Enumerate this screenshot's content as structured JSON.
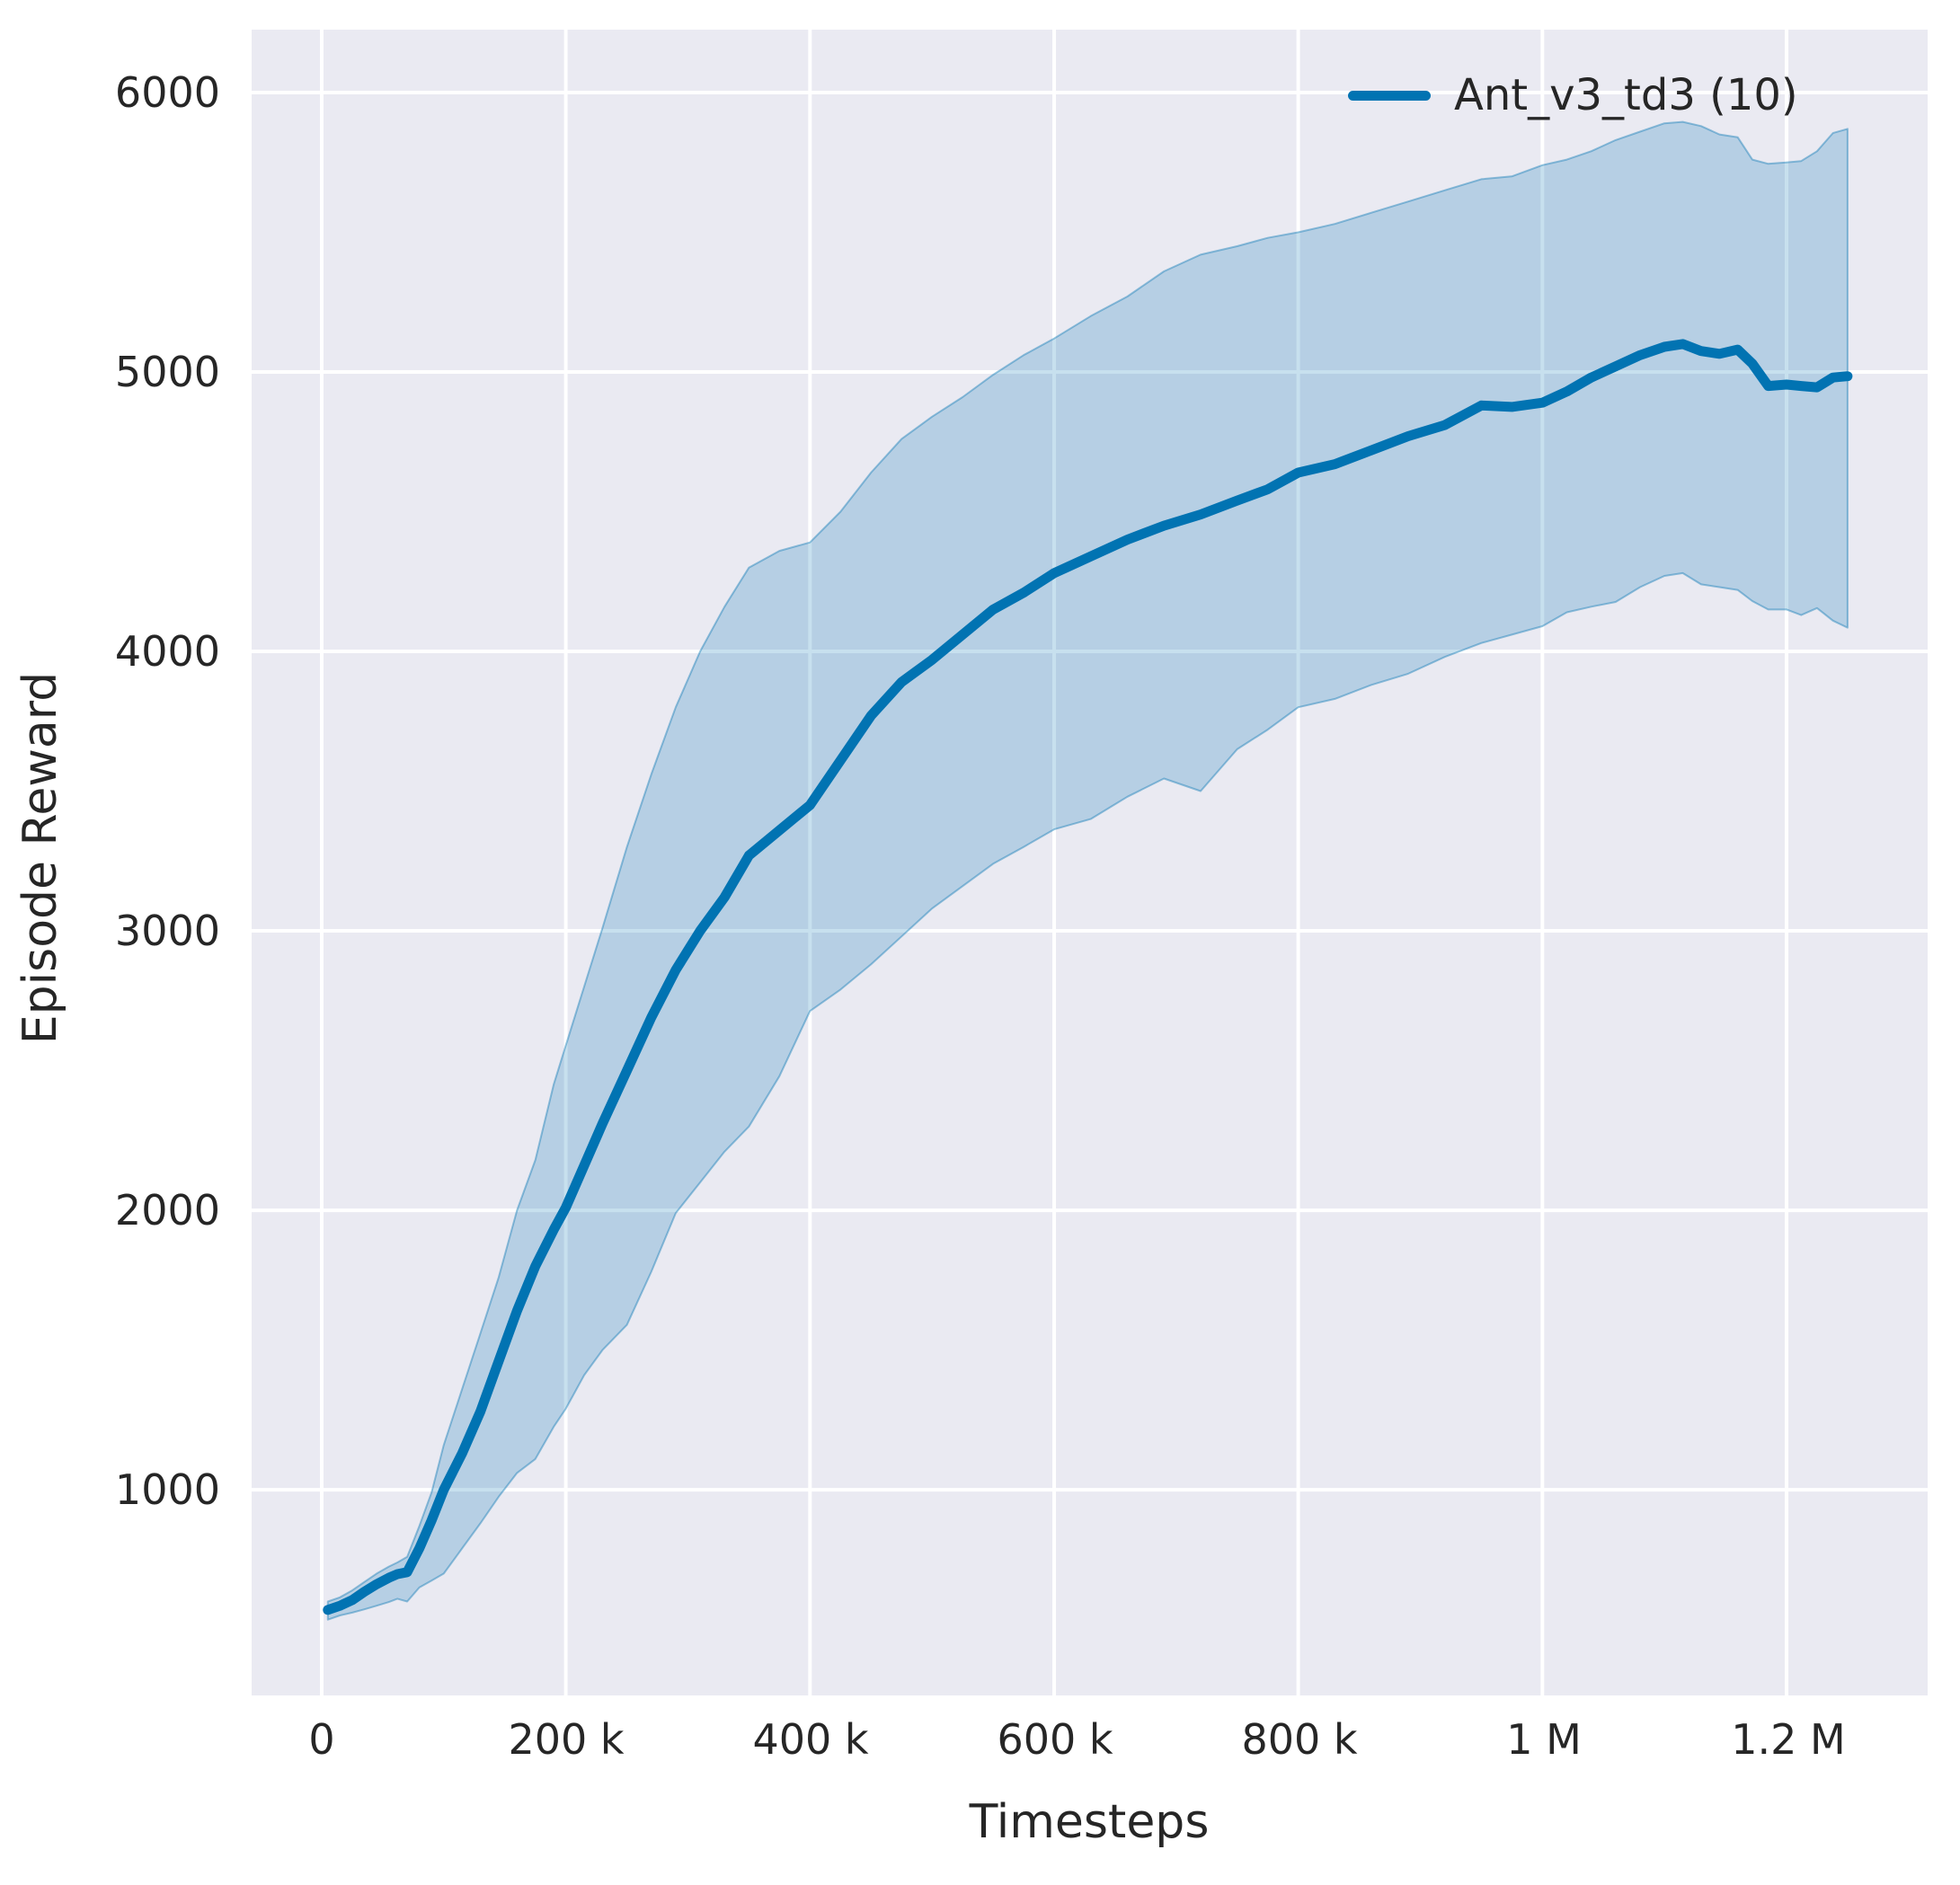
{
  "figure": {
    "background": "#ffffff"
  },
  "legend": {
    "label": "Ant_v3_td3 (10)"
  },
  "chart_data": {
    "type": "line",
    "title": "",
    "xlabel": "Timesteps",
    "ylabel": "Episode Reward",
    "legend_entries": [
      "Ant_v3_td3 (10)"
    ],
    "legend_position": "upper right",
    "grid": true,
    "xlim": [
      -57400,
      1315600
    ],
    "ylim": [
      264,
      6225
    ],
    "xticks": [
      0,
      200000,
      400000,
      600000,
      800000,
      1000000,
      1200000
    ],
    "xtick_labels": [
      "0",
      "200 k",
      "400 k",
      "600 k",
      "800 k",
      "1 M",
      "1.2 M"
    ],
    "yticks": [
      6000,
      5000,
      4000,
      3000,
      2000,
      1000
    ],
    "ytick_labels": [
      "6000",
      "5000",
      "4000",
      "3000",
      "2000",
      "1000"
    ],
    "colors": {
      "line": "#0173b2",
      "band_alpha": 0.22,
      "band_edge_alpha": 0.4,
      "background": "#eaeaf2",
      "grid": "#ffffff",
      "text": "#262626"
    },
    "series": [
      {
        "name": "Ant_v3_td3 (10)",
        "x": [
          5000,
          15000,
          25000,
          35000,
          45000,
          55000,
          62000,
          70000,
          80000,
          90000,
          100000,
          115000,
          130000,
          145000,
          160000,
          175000,
          190000,
          200000,
          215000,
          230000,
          250000,
          270000,
          290000,
          310000,
          330000,
          350000,
          375000,
          400000,
          425000,
          450000,
          475000,
          500000,
          525000,
          550000,
          575000,
          600000,
          630000,
          660000,
          690000,
          720000,
          750000,
          775000,
          800000,
          830000,
          860000,
          890000,
          920000,
          950000,
          975000,
          1000000,
          1020000,
          1040000,
          1060000,
          1080000,
          1100000,
          1115000,
          1130000,
          1145000,
          1160000,
          1172000,
          1185000,
          1200000,
          1212000,
          1225000,
          1238000,
          1250000
        ],
        "mean": [
          570,
          585,
          605,
          635,
          662,
          685,
          698,
          705,
          790,
          890,
          1000,
          1130,
          1280,
          1460,
          1640,
          1800,
          1930,
          2010,
          2160,
          2310,
          2500,
          2690,
          2860,
          3000,
          3120,
          3270,
          3360,
          3450,
          3610,
          3770,
          3890,
          3970,
          4060,
          4150,
          4210,
          4280,
          4340,
          4400,
          4450,
          4490,
          4540,
          4580,
          4640,
          4670,
          4720,
          4770,
          4810,
          4880,
          4875,
          4890,
          4930,
          4980,
          5020,
          5060,
          5090,
          5100,
          5075,
          5065,
          5080,
          5030,
          4950,
          4955,
          4950,
          4945,
          4980,
          4985
        ],
        "hi": [
          600,
          615,
          640,
          670,
          700,
          725,
          740,
          760,
          870,
          990,
          1160,
          1360,
          1560,
          1760,
          2000,
          2180,
          2450,
          2590,
          2800,
          3010,
          3300,
          3560,
          3800,
          4000,
          4160,
          4300,
          4360,
          4390,
          4500,
          4640,
          4760,
          4840,
          4910,
          4990,
          5060,
          5120,
          5200,
          5270,
          5360,
          5420,
          5450,
          5480,
          5500,
          5530,
          5570,
          5610,
          5650,
          5690,
          5700,
          5740,
          5760,
          5790,
          5830,
          5860,
          5890,
          5895,
          5880,
          5850,
          5840,
          5760,
          5745,
          5750,
          5755,
          5790,
          5855,
          5870
        ],
        "lo": [
          535,
          550,
          560,
          572,
          585,
          598,
          610,
          600,
          650,
          675,
          700,
          790,
          880,
          975,
          1060,
          1110,
          1225,
          1290,
          1410,
          1500,
          1590,
          1780,
          1990,
          2100,
          2210,
          2300,
          2480,
          2713,
          2790,
          2880,
          2980,
          3080,
          3160,
          3240,
          3300,
          3363,
          3400,
          3480,
          3545,
          3500,
          3650,
          3720,
          3800,
          3830,
          3880,
          3920,
          3980,
          4030,
          4060,
          4090,
          4140,
          4160,
          4177,
          4230,
          4270,
          4280,
          4240,
          4230,
          4220,
          4180,
          4150,
          4150,
          4130,
          4155,
          4110,
          4085
        ]
      }
    ]
  }
}
